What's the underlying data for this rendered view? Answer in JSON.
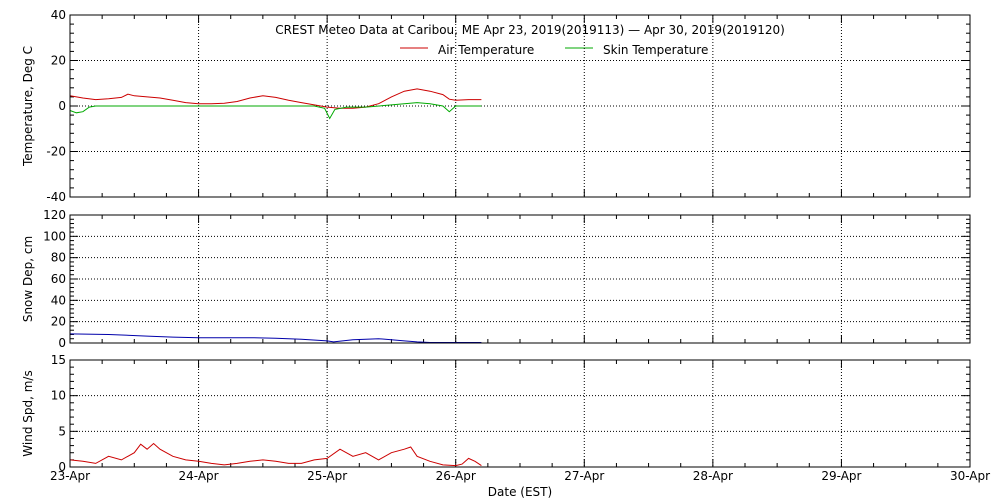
{
  "chart_data": {
    "type": "line",
    "title": "CREST Meteo Data at Caribou, ME   Apr 23, 2019(2019113) — Apr 30, 2019(2019120)",
    "xlabel": "Date (EST)",
    "x_ticks": [
      "23-Apr",
      "24-Apr",
      "25-Apr",
      "26-Apr",
      "27-Apr",
      "28-Apr",
      "29-Apr",
      "30-Apr"
    ],
    "xlim": [
      0,
      7
    ],
    "grid": true,
    "panels": [
      {
        "ylabel": "Temperature, Deg C",
        "ylim": [
          -40,
          40
        ],
        "y_ticks": [
          40,
          20,
          0,
          -20,
          -40
        ],
        "legend": "top-center",
        "series": [
          {
            "name": "Air Temperature",
            "color": "#cc0000",
            "x": [
              0,
              0.1,
              0.2,
              0.3,
              0.4,
              0.45,
              0.5,
              0.6,
              0.7,
              0.8,
              0.9,
              1.0,
              1.1,
              1.2,
              1.3,
              1.4,
              1.5,
              1.6,
              1.7,
              1.8,
              1.9,
              2.0,
              2.1,
              2.2,
              2.3,
              2.4,
              2.5,
              2.6,
              2.7,
              2.8,
              2.9,
              2.95,
              3.0,
              3.1,
              3.2
            ],
            "values": [
              4.5,
              3.5,
              2.8,
              3.2,
              3.8,
              5.2,
              4.5,
              4.0,
              3.5,
              2.5,
              1.5,
              1.0,
              1.0,
              1.2,
              2.0,
              3.5,
              4.5,
              3.8,
              2.5,
              1.5,
              0.5,
              -0.5,
              -1.0,
              -1.0,
              -0.5,
              1.0,
              4.0,
              6.5,
              7.5,
              6.5,
              5.0,
              3.0,
              2.5,
              2.8,
              2.8
            ]
          },
          {
            "name": "Skin Temperature",
            "color": "#00aa00",
            "x": [
              0,
              0.05,
              0.1,
              0.15,
              0.2,
              0.3,
              0.5,
              1.0,
              1.5,
              1.9,
              1.98,
              2.02,
              2.06,
              2.15,
              2.3,
              2.5,
              2.6,
              2.7,
              2.8,
              2.9,
              2.95,
              3.0,
              3.1,
              3.2
            ],
            "values": [
              -2.0,
              -3.0,
              -2.5,
              -0.5,
              0.0,
              0.0,
              0.0,
              0.0,
              0.0,
              0.0,
              -1.0,
              -5.5,
              -1.5,
              -0.5,
              -0.5,
              0.5,
              1.0,
              1.5,
              1.0,
              0.0,
              -2.5,
              0.0,
              0.0,
              0.0
            ]
          }
        ]
      },
      {
        "ylabel": "Snow Dep, cm",
        "ylim": [
          0,
          120
        ],
        "y_ticks": [
          120,
          100,
          80,
          60,
          40,
          20,
          0
        ],
        "series": [
          {
            "name": "",
            "color": "#0000aa",
            "x": [
              0,
              0.3,
              0.6,
              0.8,
              1.0,
              1.2,
              1.4,
              1.6,
              1.8,
              2.0,
              2.05,
              2.2,
              2.4,
              2.5,
              2.6,
              2.7,
              2.8,
              3.0,
              3.2
            ],
            "values": [
              8.5,
              8.0,
              6.5,
              5.5,
              5.0,
              5.0,
              5.0,
              4.5,
              3.5,
              2.0,
              1.0,
              3.0,
              4.0,
              3.0,
              2.0,
              1.0,
              0.5,
              0.5,
              0.5
            ]
          }
        ]
      },
      {
        "ylabel": "Wind Spd, m/s",
        "ylim": [
          0,
          15
        ],
        "y_ticks": [
          15,
          10,
          5,
          0
        ],
        "series": [
          {
            "name": "",
            "color": "#cc0000",
            "x": [
              0,
              0.1,
              0.2,
              0.3,
              0.4,
              0.5,
              0.55,
              0.6,
              0.65,
              0.7,
              0.8,
              0.9,
              1.0,
              1.1,
              1.2,
              1.3,
              1.4,
              1.5,
              1.6,
              1.7,
              1.8,
              1.9,
              2.0,
              2.1,
              2.2,
              2.3,
              2.4,
              2.5,
              2.6,
              2.65,
              2.7,
              2.8,
              2.9,
              3.0,
              3.05,
              3.1,
              3.15,
              3.2
            ],
            "values": [
              1.0,
              0.8,
              0.5,
              1.5,
              1.0,
              2.0,
              3.2,
              2.5,
              3.3,
              2.5,
              1.5,
              1.0,
              0.8,
              0.5,
              0.3,
              0.5,
              0.8,
              1.0,
              0.8,
              0.5,
              0.5,
              1.0,
              1.2,
              2.5,
              1.5,
              2.0,
              1.0,
              2.0,
              2.5,
              2.8,
              1.5,
              0.8,
              0.3,
              0.2,
              0.4,
              1.2,
              0.8,
              0.2
            ]
          }
        ]
      }
    ]
  }
}
